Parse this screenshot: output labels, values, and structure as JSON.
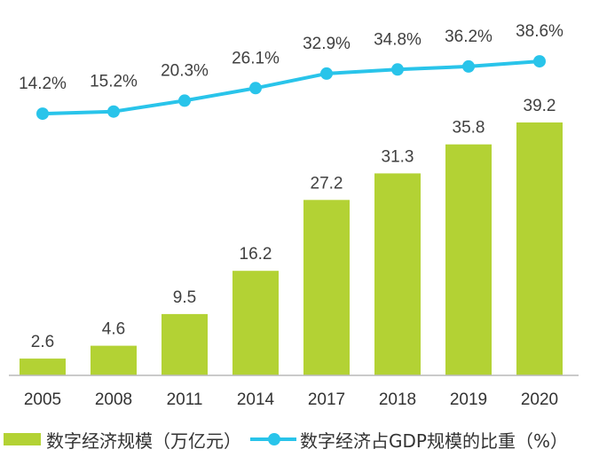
{
  "chart_data": {
    "type": "bar+line",
    "categories": [
      "2005",
      "2008",
      "2011",
      "2014",
      "2017",
      "2018",
      "2019",
      "2020"
    ],
    "series": [
      {
        "name": "数字经济规模（万亿元）",
        "type": "bar",
        "color": "#b3d234",
        "values": [
          2.6,
          4.6,
          9.5,
          16.2,
          27.2,
          31.3,
          35.8,
          39.2
        ],
        "labels": [
          "2.6",
          "4.6",
          "9.5",
          "16.2",
          "27.2",
          "31.3",
          "35.8",
          "39.2"
        ]
      },
      {
        "name": "数字经济占GDP规模的比重（%）",
        "type": "line",
        "color": "#29c4ea",
        "values": [
          14.2,
          15.2,
          20.3,
          26.1,
          32.9,
          34.8,
          36.2,
          38.6
        ],
        "labels": [
          "14.2%",
          "15.2%",
          "20.3%",
          "26.1%",
          "32.9%",
          "34.8%",
          "36.2%",
          "38.6%"
        ]
      }
    ],
    "legend_position": "bottom-left",
    "gridlines": false
  }
}
